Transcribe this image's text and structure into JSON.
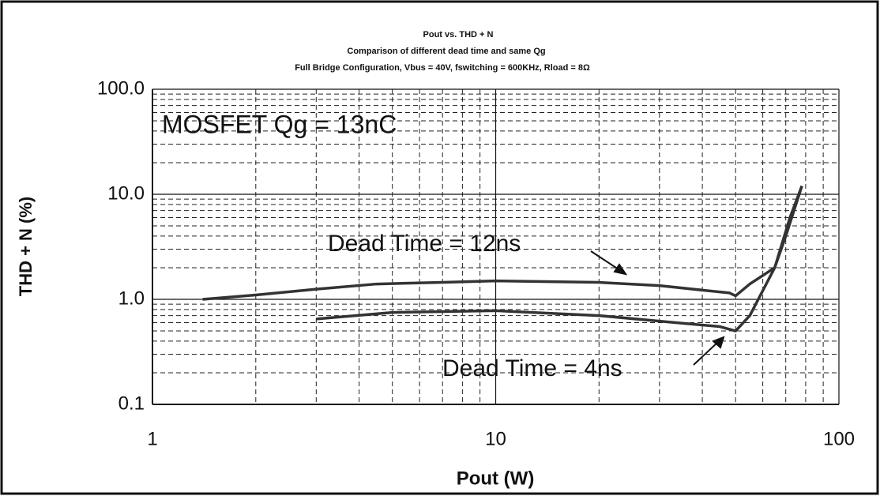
{
  "chart_data": {
    "type": "line",
    "title": "Pout vs. THD + N",
    "subtitle": [
      "Comparison of different dead time and same Qg",
      "Full Bridge Configuration, Vbus = 40V, fswitching = 600KHz, Rload = 8Ω"
    ],
    "x_label": "Pout (W)",
    "y_label": "THD + N (%)",
    "x_log": true,
    "y_log": true,
    "grid": true,
    "xlim": [
      1,
      100
    ],
    "xticks": [
      1,
      10,
      100
    ],
    "ylim": [
      0.1,
      100
    ],
    "yticks": [
      0.1,
      {
        "value": 1,
        "label": "1.0"
      },
      {
        "value": 10,
        "label": "10.0"
      },
      {
        "value": 100,
        "label": "100.0"
      }
    ],
    "annotations": [
      {
        "text": "MOSFET Qg = 13nC"
      },
      {
        "text": "Dead Time = 12ns"
      },
      {
        "text": "Dead Time = 4ns"
      }
    ],
    "series": [
      {
        "name": "Dead Time = 12ns",
        "color": "#333333",
        "x": [
          1.4,
          2,
          3,
          4.5,
          7,
          10,
          20,
          30,
          48,
          50,
          55,
          65,
          70,
          78
        ],
        "values": [
          1.0,
          1.1,
          1.25,
          1.4,
          1.45,
          1.5,
          1.45,
          1.35,
          1.15,
          1.08,
          1.4,
          2,
          4,
          12
        ]
      },
      {
        "name": "Dead Time = 4ns",
        "color": "#333333",
        "x": [
          3,
          5,
          10,
          20,
          30,
          45,
          50,
          55,
          65,
          72,
          78
        ],
        "values": [
          0.65,
          0.75,
          0.78,
          0.7,
          0.62,
          0.55,
          0.5,
          0.7,
          2,
          6,
          12
        ]
      }
    ]
  }
}
